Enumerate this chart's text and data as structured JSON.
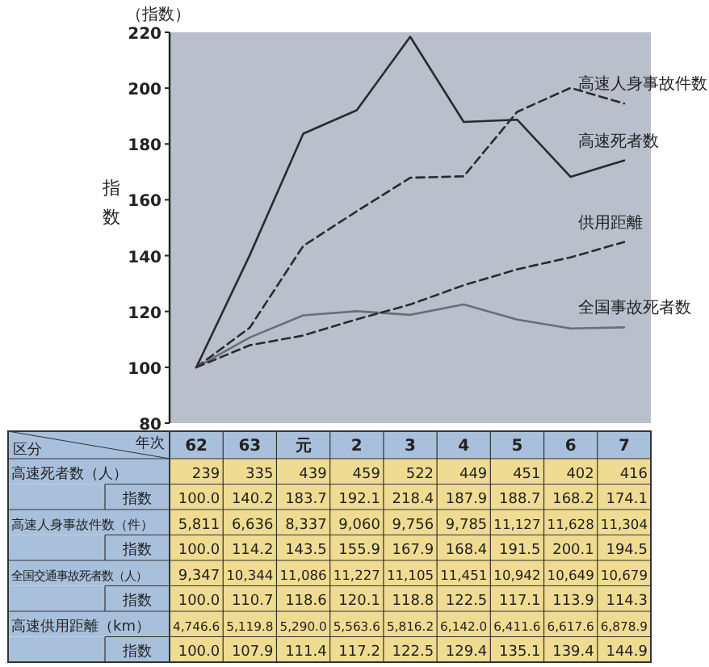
{
  "chart_data": [
    {
      "type": "line",
      "ylabel": "指数",
      "annotations": [
        "（指数）"
      ],
      "categories": [
        "62",
        "63",
        "元",
        "2",
        "3",
        "4",
        "5",
        "6",
        "7"
      ],
      "ylim": [
        80,
        220
      ],
      "yticks": [
        80,
        100,
        120,
        140,
        160,
        180,
        200,
        220
      ],
      "marker": "none",
      "grid": false,
      "series": [
        {
          "name": "高速死者数",
          "color": "#2a2a30",
          "line_style": "solid",
          "values": [
            100.0,
            140.2,
            183.7,
            192.1,
            218.4,
            187.9,
            188.7,
            168.2,
            174.1
          ]
        },
        {
          "name": "高速人身事故件数",
          "color": "#2a2a30",
          "line_style": "dashed",
          "values": [
            100.0,
            114.2,
            143.5,
            155.9,
            167.9,
            168.4,
            191.5,
            200.1,
            194.5
          ]
        },
        {
          "name": "全国事故死者数",
          "color": "#6a6e78",
          "line_style": "solid",
          "values": [
            100.0,
            110.7,
            118.6,
            120.1,
            118.8,
            122.5,
            117.1,
            113.9,
            114.3
          ]
        },
        {
          "name": "供用距離",
          "color": "#2a2a30",
          "line_style": "dashed",
          "values": [
            100.0,
            107.9,
            111.4,
            117.2,
            122.5,
            129.4,
            135.1,
            139.4,
            144.9
          ]
        }
      ]
    },
    {
      "type": "other",
      "annotations": [
        "区分",
        "年次",
        "高速死者数（人）",
        "239",
        "335",
        "439",
        "459",
        "522",
        "449",
        "451",
        "402",
        "416",
        "指数",
        "100.0",
        "140.2",
        "183.7",
        "192.1",
        "218.4",
        "187.9",
        "188.7",
        "168.2",
        "174.1",
        "高速人身事故件数（件）",
        "5,811",
        "6,636",
        "8,337",
        "9,060",
        "9,756",
        "9,785",
        "11,127",
        "11,628",
        "11,304",
        "指数",
        "100.0",
        "114.2",
        "143.5",
        "155.9",
        "167.9",
        "168.4",
        "191.5",
        "200.1",
        "194.5",
        "全国交通事故死者数（人）",
        "9,347",
        "10,344",
        "11,086",
        "11,227",
        "11,105",
        "11,451",
        "10,942",
        "10,649",
        "10,679",
        "指数",
        "100.0",
        "110.7",
        "118.6",
        "120.1",
        "118.8",
        "122.5",
        "117.1",
        "113.9",
        "114.3",
        "高速供用距離（km）",
        "4,746.6",
        "5,119.8",
        "5,290.0",
        "5,563.6",
        "5,816.2",
        "6,142.0",
        "6,411.6",
        "6,617.6",
        "6,878.9",
        "指数",
        "100.0",
        "107.9",
        "111.4",
        "117.2",
        "122.5",
        "129.4",
        "135.1",
        "139.4",
        "144.9"
      ]
    }
  ]
}
